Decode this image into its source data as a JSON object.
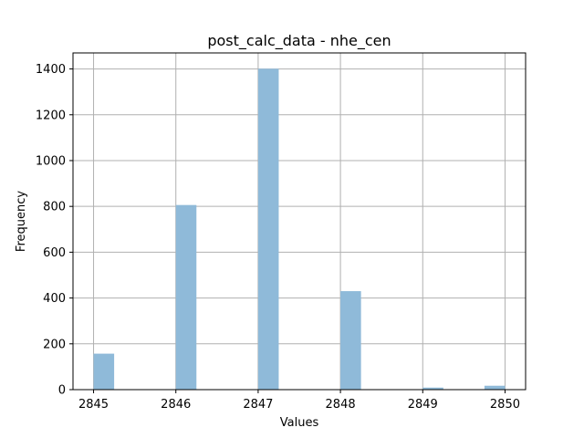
{
  "chart_data": {
    "type": "bar",
    "title": "post_calc_data - nhe_cen",
    "xlabel": "Values",
    "ylabel": "Frequency",
    "xlim": [
      2844.75,
      2850.25
    ],
    "ylim": [
      0,
      1470
    ],
    "grid": true,
    "bar_color": "#8fbad9",
    "bar_width": 0.25,
    "x_ticks": [
      "2845",
      "2846",
      "2847",
      "2848",
      "2849",
      "2850"
    ],
    "y_ticks": [
      "0",
      "200",
      "400",
      "600",
      "800",
      "1000",
      "1200",
      "1400"
    ],
    "bins": [
      {
        "x": 2845.125,
        "value": 157
      },
      {
        "x": 2846.125,
        "value": 806
      },
      {
        "x": 2847.125,
        "value": 1401
      },
      {
        "x": 2848.125,
        "value": 430
      },
      {
        "x": 2849.125,
        "value": 9
      },
      {
        "x": 2849.875,
        "value": 17
      }
    ]
  }
}
